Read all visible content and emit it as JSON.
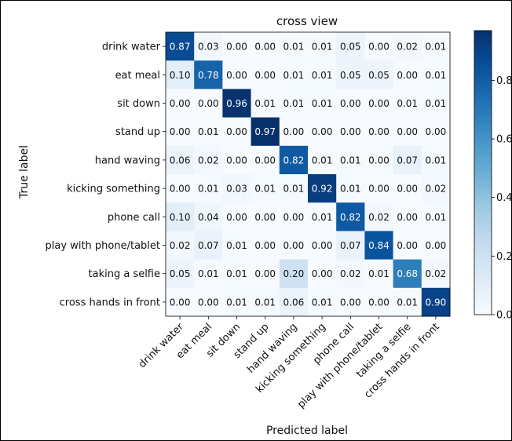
{
  "chart_data": {
    "type": "heatmap",
    "title": "cross view",
    "xlabel": "Predicted label",
    "ylabel": "True label",
    "categories": [
      "drink water",
      "eat meal",
      "sit down",
      "stand up",
      "hand waving",
      "kicking something",
      "phone call",
      "play with phone/tablet",
      "taking a selfie",
      "cross hands in front"
    ],
    "matrix": [
      [
        0.87,
        0.03,
        0.0,
        0.0,
        0.01,
        0.01,
        0.05,
        0.0,
        0.02,
        0.01
      ],
      [
        0.1,
        0.78,
        0.0,
        0.0,
        0.01,
        0.01,
        0.05,
        0.05,
        0.0,
        0.01
      ],
      [
        0.0,
        0.0,
        0.96,
        0.01,
        0.01,
        0.01,
        0.0,
        0.0,
        0.01,
        0.01
      ],
      [
        0.0,
        0.01,
        0.0,
        0.97,
        0.0,
        0.0,
        0.0,
        0.0,
        0.0,
        0.0
      ],
      [
        0.06,
        0.02,
        0.0,
        0.0,
        0.82,
        0.01,
        0.01,
        0.0,
        0.07,
        0.01
      ],
      [
        0.0,
        0.01,
        0.03,
        0.01,
        0.01,
        0.92,
        0.01,
        0.0,
        0.0,
        0.02
      ],
      [
        0.1,
        0.04,
        0.0,
        0.0,
        0.0,
        0.01,
        0.82,
        0.02,
        0.0,
        0.01
      ],
      [
        0.02,
        0.07,
        0.01,
        0.0,
        0.0,
        0.0,
        0.07,
        0.84,
        0.0,
        0.0
      ],
      [
        0.05,
        0.01,
        0.01,
        0.0,
        0.2,
        0.0,
        0.02,
        0.01,
        0.68,
        0.02
      ],
      [
        0.0,
        0.0,
        0.01,
        0.01,
        0.06,
        0.01,
        0.0,
        0.0,
        0.01,
        0.9
      ]
    ],
    "colorbar": {
      "range": [
        0.0,
        0.97
      ],
      "ticks": [
        0.0,
        0.2,
        0.4,
        0.6,
        0.8
      ],
      "tick_labels": [
        "0.0",
        "0.2",
        "0.4",
        "0.6",
        "0.8"
      ]
    },
    "colormap": "Blues",
    "colors": {
      "low": "#f7fbff",
      "high": "#08306b"
    }
  }
}
